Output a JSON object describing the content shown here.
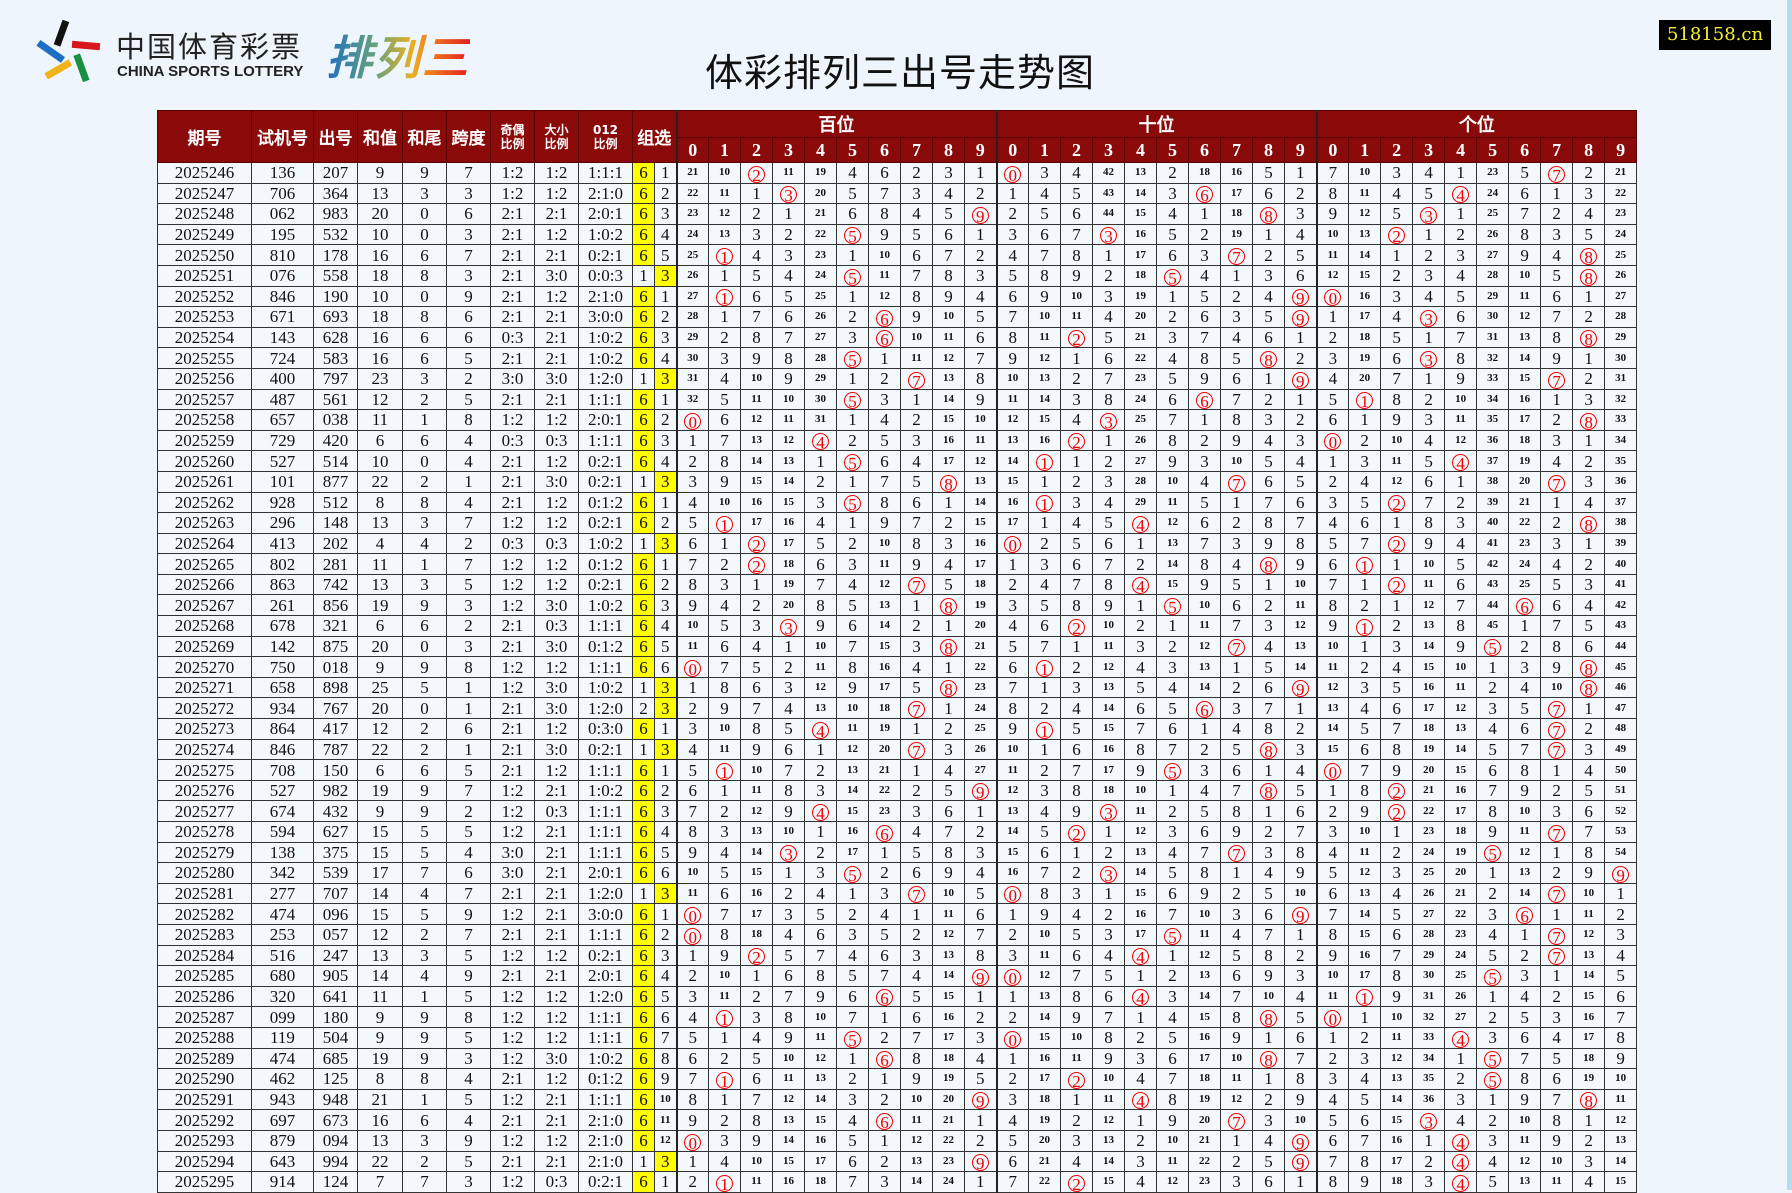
{
  "header": {
    "logo_cn": "中国体育彩票",
    "logo_en": "CHINA SPORTS LOTTERY",
    "logo_game": "排列三",
    "title": "体彩排列三出号走势图",
    "site_badge": "518158.cn"
  },
  "colors": {
    "header_bg": "#8a0a0a",
    "hit_circle": "#e00000",
    "group_highlight": "#ffff00",
    "badge_text": "#f5f032"
  },
  "columns": {
    "issue": "期号",
    "test": "试机号",
    "draw": "出号",
    "sum": "和值",
    "tail": "和尾",
    "span": "跨度",
    "odd_even": [
      "奇偶",
      "比例"
    ],
    "big_small": [
      "大小",
      "比例"
    ],
    "r012": [
      "012",
      "比例"
    ],
    "group": "组选",
    "positions": [
      "百位",
      "十位",
      "个位"
    ],
    "digits": [
      "0",
      "1",
      "2",
      "3",
      "4",
      "5",
      "6",
      "7",
      "8",
      "9"
    ]
  },
  "omission_first_row": {
    "bai": [
      21,
      10,
      2,
      11,
      19,
      4,
      6,
      2,
      3,
      1
    ],
    "shi": [
      0,
      3,
      4,
      42,
      13,
      2,
      18,
      16,
      5,
      1
    ],
    "ge": [
      7,
      10,
      3,
      4,
      1,
      23,
      5,
      7,
      2,
      21
    ]
  },
  "rows": [
    [
      "2025246",
      "136",
      "207",
      "9",
      "9",
      "7",
      "1:2",
      "1:2",
      "1:1:1",
      "6",
      "1"
    ],
    [
      "2025247",
      "706",
      "364",
      "13",
      "3",
      "3",
      "1:2",
      "1:2",
      "2:1:0",
      "6",
      "2"
    ],
    [
      "2025248",
      "062",
      "983",
      "20",
      "0",
      "6",
      "2:1",
      "2:1",
      "2:0:1",
      "6",
      "3"
    ],
    [
      "2025249",
      "195",
      "532",
      "10",
      "0",
      "3",
      "2:1",
      "1:2",
      "1:0:2",
      "6",
      "4"
    ],
    [
      "2025250",
      "810",
      "178",
      "16",
      "6",
      "7",
      "2:1",
      "2:1",
      "0:2:1",
      "6",
      "5"
    ],
    [
      "2025251",
      "076",
      "558",
      "18",
      "8",
      "3",
      "2:1",
      "3:0",
      "0:0:3",
      "1",
      "3"
    ],
    [
      "2025252",
      "846",
      "190",
      "10",
      "0",
      "9",
      "2:1",
      "1:2",
      "2:1:0",
      "6",
      "1"
    ],
    [
      "2025253",
      "671",
      "693",
      "18",
      "8",
      "6",
      "2:1",
      "2:1",
      "3:0:0",
      "6",
      "2"
    ],
    [
      "2025254",
      "143",
      "628",
      "16",
      "6",
      "6",
      "0:3",
      "2:1",
      "1:0:2",
      "6",
      "3"
    ],
    [
      "2025255",
      "724",
      "583",
      "16",
      "6",
      "5",
      "2:1",
      "2:1",
      "1:0:2",
      "6",
      "4"
    ],
    [
      "2025256",
      "400",
      "797",
      "23",
      "3",
      "2",
      "3:0",
      "3:0",
      "1:2:0",
      "1",
      "3"
    ],
    [
      "2025257",
      "487",
      "561",
      "12",
      "2",
      "5",
      "2:1",
      "2:1",
      "1:1:1",
      "6",
      "1"
    ],
    [
      "2025258",
      "657",
      "038",
      "11",
      "1",
      "8",
      "1:2",
      "1:2",
      "2:0:1",
      "6",
      "2"
    ],
    [
      "2025259",
      "729",
      "420",
      "6",
      "6",
      "4",
      "0:3",
      "0:3",
      "1:1:1",
      "6",
      "3"
    ],
    [
      "2025260",
      "527",
      "514",
      "10",
      "0",
      "4",
      "2:1",
      "1:2",
      "0:2:1",
      "6",
      "4"
    ],
    [
      "2025261",
      "101",
      "877",
      "22",
      "2",
      "1",
      "2:1",
      "3:0",
      "0:2:1",
      "1",
      "3"
    ],
    [
      "2025262",
      "928",
      "512",
      "8",
      "8",
      "4",
      "2:1",
      "1:2",
      "0:1:2",
      "6",
      "1"
    ],
    [
      "2025263",
      "296",
      "148",
      "13",
      "3",
      "7",
      "1:2",
      "1:2",
      "0:2:1",
      "6",
      "2"
    ],
    [
      "2025264",
      "413",
      "202",
      "4",
      "4",
      "2",
      "0:3",
      "0:3",
      "1:0:2",
      "1",
      "3"
    ],
    [
      "2025265",
      "802",
      "281",
      "11",
      "1",
      "7",
      "1:2",
      "1:2",
      "0:1:2",
      "6",
      "1"
    ],
    [
      "2025266",
      "863",
      "742",
      "13",
      "3",
      "5",
      "1:2",
      "1:2",
      "0:2:1",
      "6",
      "2"
    ],
    [
      "2025267",
      "261",
      "856",
      "19",
      "9",
      "3",
      "1:2",
      "3:0",
      "1:0:2",
      "6",
      "3"
    ],
    [
      "2025268",
      "678",
      "321",
      "6",
      "6",
      "2",
      "2:1",
      "0:3",
      "1:1:1",
      "6",
      "4"
    ],
    [
      "2025269",
      "142",
      "875",
      "20",
      "0",
      "3",
      "2:1",
      "3:0",
      "0:1:2",
      "6",
      "5"
    ],
    [
      "2025270",
      "750",
      "018",
      "9",
      "9",
      "8",
      "1:2",
      "1:2",
      "1:1:1",
      "6",
      "6"
    ],
    [
      "2025271",
      "658",
      "898",
      "25",
      "5",
      "1",
      "1:2",
      "3:0",
      "1:0:2",
      "1",
      "3"
    ],
    [
      "2025272",
      "934",
      "767",
      "20",
      "0",
      "1",
      "2:1",
      "3:0",
      "1:2:0",
      "2",
      "3"
    ],
    [
      "2025273",
      "864",
      "417",
      "12",
      "2",
      "6",
      "2:1",
      "1:2",
      "0:3:0",
      "6",
      "1"
    ],
    [
      "2025274",
      "846",
      "787",
      "22",
      "2",
      "1",
      "2:1",
      "3:0",
      "0:2:1",
      "1",
      "3"
    ],
    [
      "2025275",
      "708",
      "150",
      "6",
      "6",
      "5",
      "2:1",
      "1:2",
      "1:1:1",
      "6",
      "1"
    ],
    [
      "2025276",
      "527",
      "982",
      "19",
      "9",
      "7",
      "1:2",
      "2:1",
      "1:0:2",
      "6",
      "2"
    ],
    [
      "2025277",
      "674",
      "432",
      "9",
      "9",
      "2",
      "1:2",
      "0:3",
      "1:1:1",
      "6",
      "3"
    ],
    [
      "2025278",
      "594",
      "627",
      "15",
      "5",
      "5",
      "1:2",
      "2:1",
      "1:1:1",
      "6",
      "4"
    ],
    [
      "2025279",
      "138",
      "375",
      "15",
      "5",
      "4",
      "3:0",
      "2:1",
      "1:1:1",
      "6",
      "5"
    ],
    [
      "2025280",
      "342",
      "539",
      "17",
      "7",
      "6",
      "3:0",
      "2:1",
      "2:0:1",
      "6",
      "6"
    ],
    [
      "2025281",
      "277",
      "707",
      "14",
      "4",
      "7",
      "2:1",
      "2:1",
      "1:2:0",
      "1",
      "3"
    ],
    [
      "2025282",
      "474",
      "096",
      "15",
      "5",
      "9",
      "1:2",
      "2:1",
      "3:0:0",
      "6",
      "1"
    ],
    [
      "2025283",
      "253",
      "057",
      "12",
      "2",
      "7",
      "2:1",
      "2:1",
      "1:1:1",
      "6",
      "2"
    ],
    [
      "2025284",
      "516",
      "247",
      "13",
      "3",
      "5",
      "1:2",
      "1:2",
      "0:2:1",
      "6",
      "3"
    ],
    [
      "2025285",
      "680",
      "905",
      "14",
      "4",
      "9",
      "2:1",
      "2:1",
      "2:0:1",
      "6",
      "4"
    ],
    [
      "2025286",
      "320",
      "641",
      "11",
      "1",
      "5",
      "1:2",
      "1:2",
      "1:2:0",
      "6",
      "5"
    ],
    [
      "2025287",
      "099",
      "180",
      "9",
      "9",
      "8",
      "1:2",
      "1:2",
      "1:1:1",
      "6",
      "6"
    ],
    [
      "2025288",
      "119",
      "504",
      "9",
      "9",
      "5",
      "1:2",
      "1:2",
      "1:1:1",
      "6",
      "7"
    ],
    [
      "2025289",
      "474",
      "685",
      "19",
      "9",
      "3",
      "1:2",
      "3:0",
      "1:0:2",
      "6",
      "8"
    ],
    [
      "2025290",
      "462",
      "125",
      "8",
      "8",
      "4",
      "2:1",
      "1:2",
      "0:1:2",
      "6",
      "9"
    ],
    [
      "2025291",
      "943",
      "948",
      "21",
      "1",
      "5",
      "1:2",
      "2:1",
      "1:1:1",
      "6",
      "10"
    ],
    [
      "2025292",
      "697",
      "673",
      "16",
      "6",
      "4",
      "2:1",
      "2:1",
      "2:1:0",
      "6",
      "11"
    ],
    [
      "2025293",
      "879",
      "094",
      "13",
      "3",
      "9",
      "1:2",
      "1:2",
      "2:1:0",
      "6",
      "12"
    ],
    [
      "2025294",
      "643",
      "994",
      "22",
      "2",
      "5",
      "2:1",
      "2:1",
      "2:1:0",
      "1",
      "3"
    ],
    [
      "2025295",
      "914",
      "124",
      "7",
      "7",
      "3",
      "1:2",
      "0:3",
      "0:2:1",
      "6",
      "1"
    ]
  ]
}
